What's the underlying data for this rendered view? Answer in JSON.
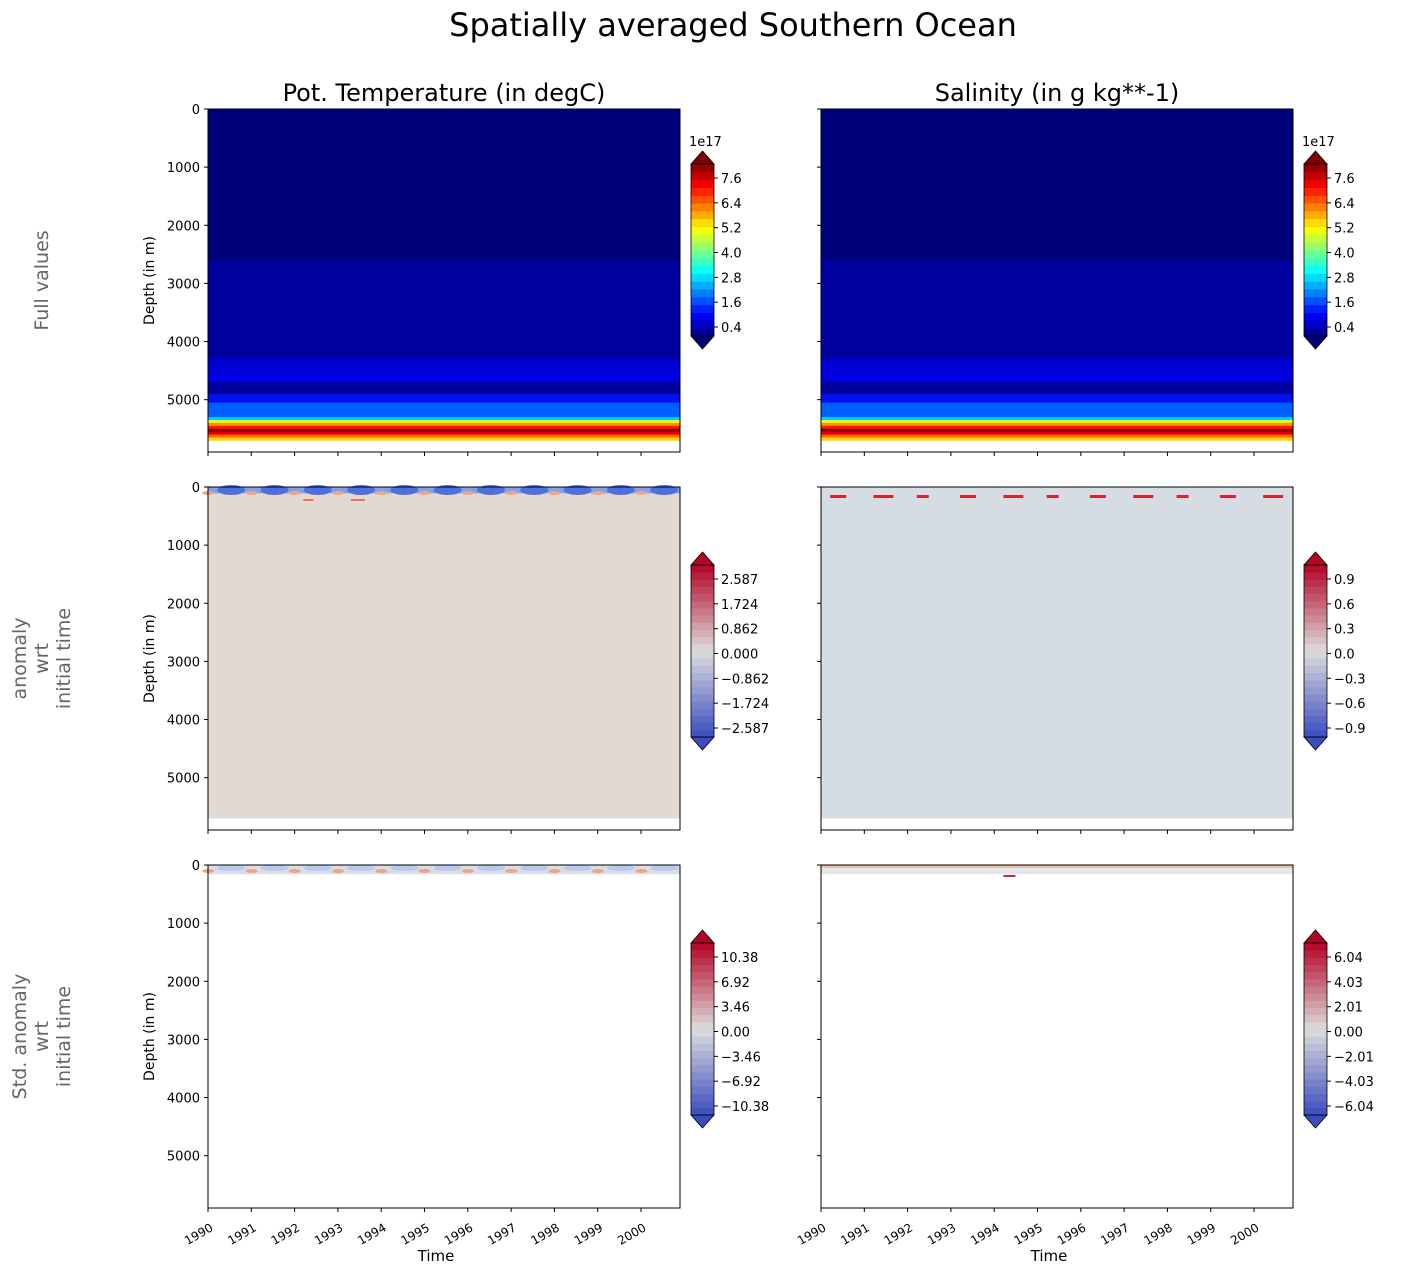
{
  "title": "Spatially averaged Southern Ocean",
  "columns": [
    "Pot. Temperature (in degC)",
    "Salinity (in g kg**-1)"
  ],
  "row_labels": [
    [
      "Full values"
    ],
    [
      "anomaly",
      "wrt",
      "initial time"
    ],
    [
      "Std. anomaly",
      "wrt",
      "initial time"
    ]
  ],
  "ylabel": "Depth (in m)",
  "xlabel": "Time",
  "chart_data": {
    "type": "heatmap",
    "x_ticks": [
      "1990",
      "1991",
      "1992",
      "1993",
      "1994",
      "1995",
      "1996",
      "1997",
      "1998",
      "1999",
      "2000"
    ],
    "xlim": [
      1990,
      2000.9
    ],
    "y_ticks": [
      "0",
      "1000",
      "2000",
      "3000",
      "4000",
      "5000"
    ],
    "ylim": [
      5900,
      0
    ],
    "data_depth_max": 5700,
    "panels": [
      {
        "row": 0,
        "col": 0,
        "cmap": "jet",
        "offset": "1e17",
        "cbar_ticks": [
          "7.6",
          "6.4",
          "5.2",
          "4.0",
          "2.8",
          "1.6",
          "0.4"
        ],
        "cbar_range": [
          0.0,
          8.8
        ],
        "bands": [
          [
            0,
            2600,
            "#00007a"
          ],
          [
            2600,
            4300,
            "#00009f"
          ],
          [
            4300,
            4500,
            "#0000d6"
          ],
          [
            4500,
            4700,
            "#0000e3"
          ],
          [
            4700,
            4900,
            "#00009c"
          ],
          [
            4900,
            5050,
            "#0010f0"
          ],
          [
            5050,
            5300,
            "#0060ff"
          ],
          [
            5300,
            5350,
            "#00d0ff"
          ],
          [
            5350,
            5400,
            "#f0ff10"
          ],
          [
            5400,
            5450,
            "#ff9000"
          ],
          [
            5450,
            5500,
            "#ff1800"
          ],
          [
            5500,
            5550,
            "#900000"
          ],
          [
            5550,
            5600,
            "#e00000"
          ],
          [
            5600,
            5650,
            "#ff6000"
          ],
          [
            5650,
            5700,
            "#ffd800"
          ]
        ]
      },
      {
        "row": 0,
        "col": 1,
        "cmap": "jet",
        "offset": "1e17",
        "cbar_ticks": [
          "7.6",
          "6.4",
          "5.2",
          "4.0",
          "2.8",
          "1.6",
          "0.4"
        ],
        "cbar_range": [
          0.0,
          8.8
        ],
        "bands": [
          [
            0,
            2600,
            "#00007a"
          ],
          [
            2600,
            4300,
            "#00009f"
          ],
          [
            4300,
            4500,
            "#0000d6"
          ],
          [
            4500,
            4700,
            "#0000e3"
          ],
          [
            4700,
            4900,
            "#00009c"
          ],
          [
            4900,
            5050,
            "#0010f0"
          ],
          [
            5050,
            5300,
            "#0060ff"
          ],
          [
            5300,
            5350,
            "#00d0ff"
          ],
          [
            5350,
            5400,
            "#f0ff10"
          ],
          [
            5400,
            5450,
            "#ff9000"
          ],
          [
            5450,
            5500,
            "#ff1800"
          ],
          [
            5500,
            5550,
            "#900000"
          ],
          [
            5550,
            5600,
            "#e00000"
          ],
          [
            5600,
            5650,
            "#ff6000"
          ],
          [
            5650,
            5700,
            "#ffd800"
          ]
        ]
      },
      {
        "row": 1,
        "col": 0,
        "cmap": "coolwarm",
        "cbar_ticks": [
          "2.587",
          "1.724",
          "0.862",
          "0.000",
          "−0.862",
          "−1.724",
          "−2.587"
        ],
        "background": "#e2d9d2",
        "bands": [
          [
            0,
            100,
            "#7fa2ee"
          ]
        ]
      },
      {
        "row": 1,
        "col": 1,
        "cmap": "coolwarm",
        "cbar_ticks": [
          "0.9",
          "0.6",
          "0.3",
          "0.0",
          "−0.3",
          "−0.6",
          "−0.9"
        ],
        "background": "#d5dce4",
        "bands": []
      },
      {
        "row": 2,
        "col": 0,
        "cmap": "coolwarm",
        "cbar_ticks": [
          "10.38",
          "6.92",
          "3.46",
          "0.00",
          "−3.46",
          "−6.92",
          "−10.38"
        ],
        "background": "#ffffff",
        "bands": [
          [
            0,
            150,
            "#d8dde6"
          ]
        ]
      },
      {
        "row": 2,
        "col": 1,
        "cmap": "coolwarm",
        "cbar_ticks": [
          "6.04",
          "4.03",
          "2.01",
          "0.00",
          "−2.01",
          "−4.03",
          "−6.04"
        ],
        "background": "#ffffff",
        "bands": [
          [
            0,
            50,
            "#e8c0a8"
          ],
          [
            50,
            150,
            "#e4e6ea"
          ]
        ]
      }
    ]
  }
}
